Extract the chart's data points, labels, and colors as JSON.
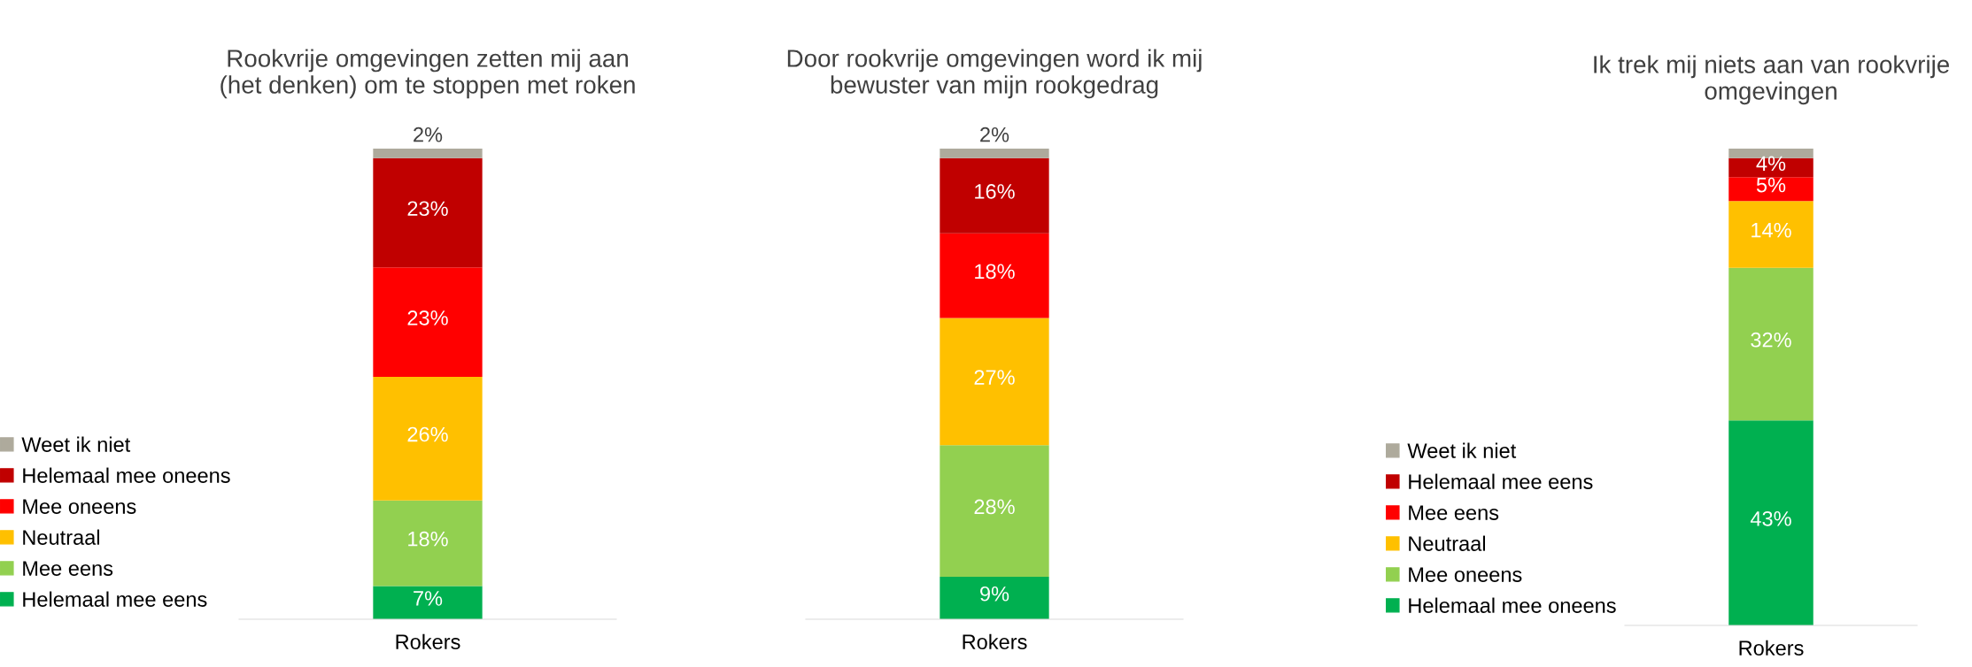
{
  "chart_data": [
    {
      "type": "bar",
      "stacked": true,
      "title": "Rookvrije omgevingen zetten mij aan\n(het denken) om te stoppen met roken",
      "categories": [
        "Rokers"
      ],
      "legend": "left",
      "series": [
        {
          "name": "Helemaal mee eens",
          "color": "#00b050",
          "values": [
            7
          ],
          "value_labels": [
            "7%"
          ]
        },
        {
          "name": "Mee eens",
          "color": "#92d050",
          "values": [
            18
          ],
          "value_labels": [
            "18%"
          ]
        },
        {
          "name": "Neutraal",
          "color": "#ffc000",
          "values": [
            26
          ],
          "value_labels": [
            "26%"
          ]
        },
        {
          "name": "Mee oneens",
          "color": "#ff0000",
          "values": [
            23
          ],
          "value_labels": [
            "23%"
          ]
        },
        {
          "name": "Helemaal mee oneens",
          "color": "#c00000",
          "values": [
            23
          ],
          "value_labels": [
            "23%"
          ]
        },
        {
          "name": "Weet ik niet",
          "color": "#aeaa9c",
          "values": [
            2
          ],
          "value_labels": [
            "2%"
          ]
        }
      ]
    },
    {
      "type": "bar",
      "stacked": true,
      "title": "Door rookvrije omgevingen word ik mij\nbewuster van mijn rookgedrag",
      "categories": [
        "Rokers"
      ],
      "series": [
        {
          "color": "#00b050",
          "values": [
            9
          ],
          "value_labels": [
            "9%"
          ]
        },
        {
          "color": "#92d050",
          "values": [
            28
          ],
          "value_labels": [
            "28%"
          ]
        },
        {
          "color": "#ffc000",
          "values": [
            27
          ],
          "value_labels": [
            "27%"
          ]
        },
        {
          "color": "#ff0000",
          "values": [
            18
          ],
          "value_labels": [
            "18%"
          ]
        },
        {
          "color": "#c00000",
          "values": [
            16
          ],
          "value_labels": [
            "16%"
          ]
        },
        {
          "color": "#aeaa9c",
          "values": [
            2
          ],
          "value_labels": [
            "2%"
          ]
        }
      ]
    },
    {
      "type": "bar",
      "stacked": true,
      "title": "Ik trek mij niets aan van rookvrije\nomgevingen",
      "categories": [
        "Rokers"
      ],
      "legend": "left",
      "series": [
        {
          "name": "Helemaal mee oneens",
          "color": "#00b050",
          "values": [
            43
          ],
          "value_labels": [
            "43%"
          ]
        },
        {
          "name": "Mee oneens",
          "color": "#92d050",
          "values": [
            32
          ],
          "value_labels": [
            "32%"
          ]
        },
        {
          "name": "Neutraal",
          "color": "#ffc000",
          "values": [
            14
          ],
          "value_labels": [
            "14%"
          ]
        },
        {
          "name": "Mee eens",
          "color": "#ff0000",
          "values": [
            5
          ],
          "value_labels": [
            "5%"
          ]
        },
        {
          "name": "Helemaal mee eens",
          "color": "#c00000",
          "values": [
            4
          ],
          "value_labels": [
            "4%"
          ]
        },
        {
          "name": "Weet ik niet",
          "color": "#aeaa9c",
          "values": [
            2
          ]
        }
      ]
    }
  ]
}
